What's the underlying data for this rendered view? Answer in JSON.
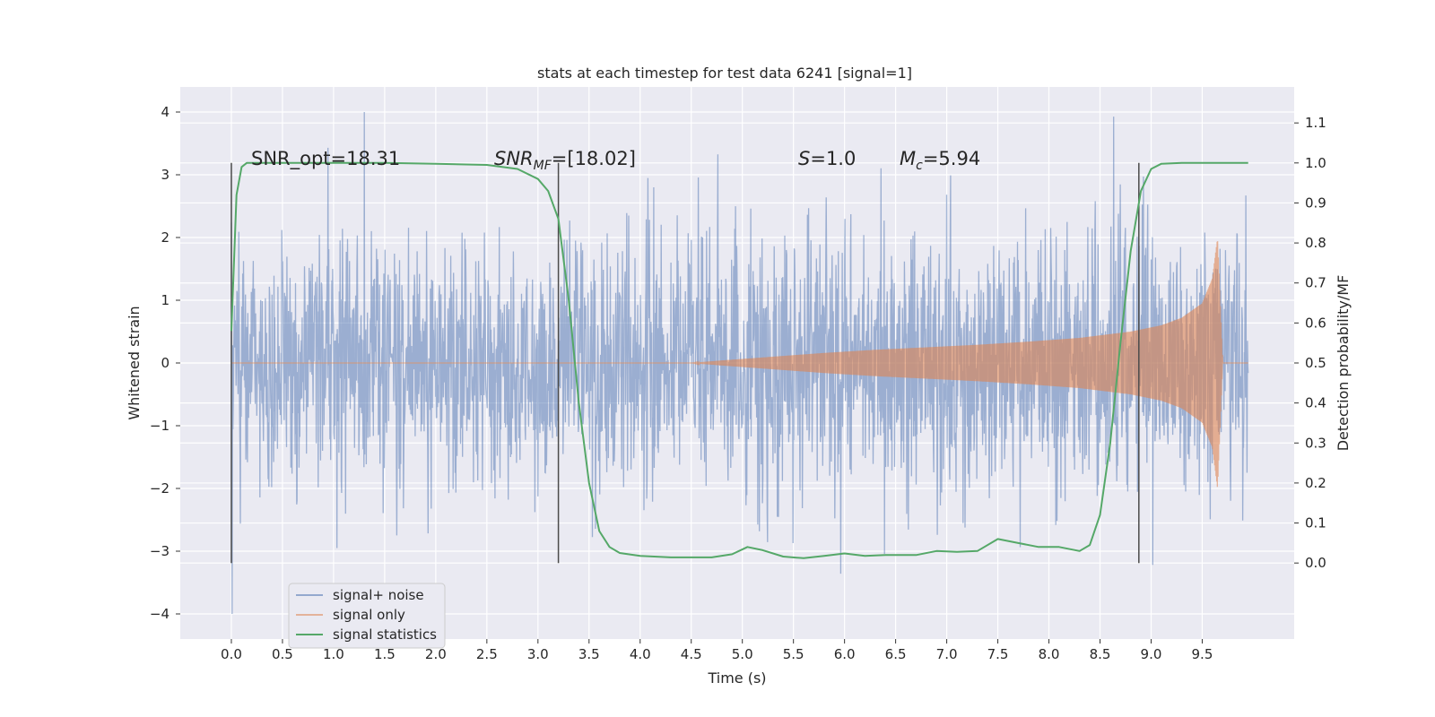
{
  "chart_data": {
    "type": "line",
    "title": "stats at each timestep for test data 6241 [signal=1]",
    "xlabel": "Time (s)",
    "ylabel": "Whitened strain",
    "y2label": "Detection probability/MF",
    "xlim": [
      -0.5,
      10.4
    ],
    "ylim": [
      -4.4,
      4.4
    ],
    "y2lim": [
      -0.19,
      1.19
    ],
    "x_ticks": [
      "0.0",
      "0.5",
      "1.0",
      "1.5",
      "2.0",
      "2.5",
      "3.0",
      "3.5",
      "4.0",
      "4.5",
      "5.0",
      "5.5",
      "6.0",
      "6.5",
      "7.0",
      "7.5",
      "8.0",
      "8.5",
      "9.0",
      "9.5"
    ],
    "y_ticks": [
      "4",
      "3",
      "2",
      "1",
      "0",
      "−1",
      "−2",
      "−3",
      "−4"
    ],
    "y2_ticks": [
      "1.1",
      "1.0",
      "0.9",
      "0.8",
      "0.7",
      "0.6",
      "0.5",
      "0.4",
      "0.3",
      "0.2",
      "0.1",
      "0.0"
    ],
    "grid": true,
    "legend_position": "lower-left",
    "colors": {
      "background": "#eaeaf2",
      "grid": "#ffffff",
      "noise": "#4c72b0",
      "signal": "#dd8452",
      "statistics": "#55a868",
      "markers": "#4a4a4a"
    },
    "annotations": {
      "snr_opt": "SNR_opt=18.31",
      "snr_mf_prefix": "SNR",
      "snr_mf_sub": "MF",
      "snr_mf_value": "=[18.02]",
      "s_prefix": "S",
      "s_value": "=1.0",
      "mc_prefix": "M",
      "mc_sub": "c",
      "mc_value": "=5.94"
    },
    "vertical_markers": [
      0.0,
      3.2,
      8.88
    ],
    "noise_envelope": {
      "x": [
        0.0,
        9.95
      ],
      "typical_amplitude": 1.3,
      "peak_amplitude": 4.0
    },
    "signal_chirp": {
      "x": [
        4.5,
        4.8,
        5.3,
        5.8,
        6.3,
        6.8,
        7.3,
        7.8,
        8.3,
        8.8,
        9.1,
        9.3,
        9.5,
        9.6,
        9.65,
        9.7
      ],
      "amplitude": [
        0.0,
        0.04,
        0.1,
        0.16,
        0.21,
        0.25,
        0.29,
        0.34,
        0.4,
        0.5,
        0.6,
        0.72,
        0.95,
        1.35,
        2.0,
        0.05
      ]
    },
    "series": [
      {
        "name": "signal statistics",
        "x": [
          0.0,
          0.05,
          0.1,
          0.15,
          0.2,
          0.4,
          0.8,
          1.5,
          2.0,
          2.5,
          2.8,
          3.0,
          3.1,
          3.2,
          3.3,
          3.4,
          3.5,
          3.6,
          3.7,
          3.8,
          4.0,
          4.3,
          4.7,
          4.9,
          5.05,
          5.2,
          5.4,
          5.6,
          5.8,
          6.0,
          6.2,
          6.4,
          6.7,
          6.9,
          7.1,
          7.3,
          7.5,
          7.7,
          7.9,
          8.1,
          8.3,
          8.4,
          8.5,
          8.6,
          8.7,
          8.8,
          8.9,
          9.0,
          9.1,
          9.3,
          9.5,
          9.7,
          9.95
        ],
        "y": [
          0.58,
          0.92,
          0.99,
          1.0,
          1.0,
          1.0,
          1.0,
          1.0,
          0.998,
          0.995,
          0.985,
          0.96,
          0.93,
          0.86,
          0.66,
          0.4,
          0.2,
          0.08,
          0.04,
          0.025,
          0.018,
          0.014,
          0.014,
          0.022,
          0.04,
          0.032,
          0.016,
          0.012,
          0.018,
          0.024,
          0.018,
          0.02,
          0.02,
          0.03,
          0.028,
          0.03,
          0.06,
          0.05,
          0.04,
          0.04,
          0.03,
          0.045,
          0.12,
          0.3,
          0.55,
          0.78,
          0.93,
          0.985,
          0.998,
          1.0,
          1.0,
          1.0,
          1.0
        ]
      }
    ],
    "legend": [
      "signal+ noise",
      "signal only",
      "signal statistics"
    ]
  }
}
